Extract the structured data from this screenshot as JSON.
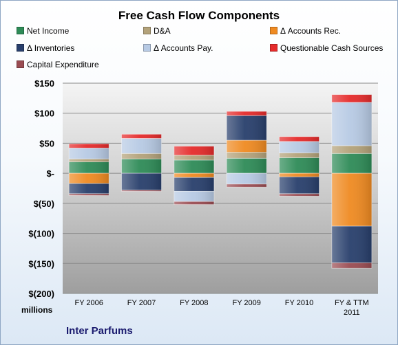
{
  "chart_data": {
    "type": "bar",
    "stacked": true,
    "title": "Free Cash Flow Components",
    "subtitle": "Inter Parfums",
    "units_label": "millions",
    "categories": [
      "FY 2006",
      "FY 2007",
      "FY 2008",
      "FY 2009",
      "FY 2010",
      "FY & TTM 2011"
    ],
    "ylim": [
      -200,
      150
    ],
    "yticks": [
      150,
      100,
      50,
      0,
      -50,
      -100,
      -150,
      -200
    ],
    "ytick_labels": [
      "$150",
      "$100",
      "$50",
      "$-",
      "$(50)",
      "$(100)",
      "$(150)",
      "$(200)"
    ],
    "grid": true,
    "legend": "top",
    "series": [
      {
        "name": "Net Income",
        "color": "#2e8b57",
        "values": [
          19,
          24,
          22,
          25,
          26,
          33
        ]
      },
      {
        "name": "D&A",
        "color": "#b3a27a",
        "values": [
          5,
          9,
          8,
          10,
          8,
          13
        ]
      },
      {
        "name": "Δ Accounts Rec.",
        "color": "#ef8a21",
        "values": [
          -17,
          0,
          -7,
          20,
          -6,
          -88
        ]
      },
      {
        "name": "Δ Inventories",
        "color": "#283f6c",
        "values": [
          -17,
          -28,
          -23,
          41,
          -28,
          -61
        ]
      },
      {
        "name": "Δ Accounts Pay.",
        "color": "#b7cae4",
        "values": [
          18,
          25,
          -17,
          -18,
          19,
          72
        ]
      },
      {
        "name": "Questionable Cash Sources",
        "color": "#e52b2b",
        "values": [
          7,
          7,
          15,
          7,
          8,
          13
        ]
      },
      {
        "name": "Capital Expenditure",
        "color": "#9a4c52",
        "values": [
          -3,
          -2,
          -5,
          -5,
          -4,
          -9
        ]
      }
    ]
  }
}
